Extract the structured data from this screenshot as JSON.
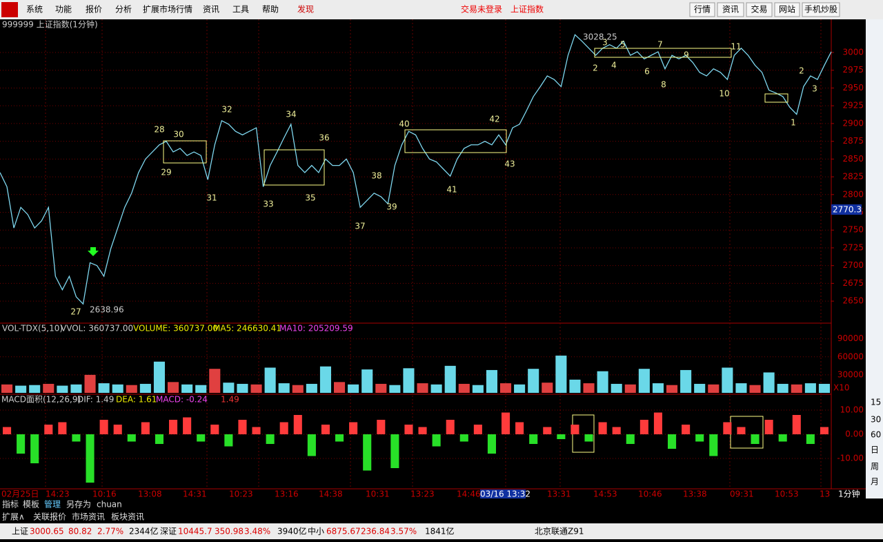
{
  "menu": [
    "系统",
    "功能",
    "报价",
    "分析",
    "扩展市场行情",
    "资讯",
    "工具",
    "帮助",
    "发现"
  ],
  "status": [
    "交易未登录",
    "上证指数"
  ],
  "top_buttons": [
    "行情",
    "资讯",
    "交易",
    "网站",
    "手机炒股"
  ],
  "main_chart": {
    "title": "999999 上证指数(1分钟)",
    "ylim": [
      2620,
      3035
    ],
    "yticks": [
      2650,
      2675,
      2700,
      2725,
      2750,
      2775,
      2800,
      2825,
      2850,
      2875,
      2900,
      2925,
      2950,
      2975,
      3000
    ],
    "price": [
      2831,
      2811,
      2753,
      2782,
      2772,
      2753,
      2763,
      2782,
      2685,
      2666,
      2685,
      2656,
      2646,
      2704,
      2700,
      2685,
      2724,
      2753,
      2782,
      2802,
      2831,
      2850,
      2860,
      2870,
      2875,
      2860,
      2865,
      2855,
      2860,
      2855,
      2821,
      2870,
      2904,
      2899,
      2889,
      2884,
      2889,
      2894,
      2811,
      2841,
      2860,
      2880,
      2899,
      2841,
      2831,
      2841,
      2831,
      2850,
      2841,
      2841,
      2850,
      2831,
      2782,
      2792,
      2802,
      2797,
      2787,
      2841,
      2870,
      2889,
      2884,
      2865,
      2850,
      2846,
      2836,
      2826,
      2850,
      2865,
      2870,
      2870,
      2875,
      2870,
      2884,
      2870,
      2894,
      2899,
      2918,
      2938,
      2952,
      2967,
      2962,
      2952,
      2996,
      3025,
      3016,
      3006,
      2996,
      3006,
      3011,
      3006,
      3016,
      2996,
      3001,
      2991,
      2996,
      3001,
      2977,
      2996,
      2991,
      2996,
      2986,
      2972,
      2967,
      2977,
      2972,
      2962,
      2996,
      3006,
      2996,
      2982,
      2972,
      2947,
      2943,
      2938,
      2923,
      2913,
      2952,
      2967,
      2962,
      2982,
      3001
    ],
    "high_label": "3028.25",
    "low_label": "2638.96",
    "current_label": "2770.3",
    "wave_labels": [
      "27",
      "28",
      "29",
      "30",
      "31",
      "32",
      "33",
      "34",
      "35",
      "36",
      "37",
      "38",
      "39",
      "40",
      "41",
      "42",
      "43",
      "2",
      "3",
      "4",
      "5",
      "6",
      "7",
      "8",
      "9",
      "10",
      "11",
      "1",
      "2",
      "3"
    ]
  },
  "volume": {
    "labels": [
      "VOL-TDX(5,10)",
      "VVOL: 360737.00",
      "VOLUME: 360737.00",
      "MA5: 246630.41",
      "MA10: 205209.59"
    ],
    "ylim": [
      0,
      100000
    ],
    "yticks": [
      30000,
      60000,
      90000
    ],
    "scale_label": "X10",
    "values": [
      14000,
      12000,
      13000,
      15000,
      12000,
      14000,
      30000,
      16000,
      14000,
      13000,
      15000,
      52000,
      18000,
      14000,
      13000,
      40000,
      17000,
      15000,
      14000,
      42000,
      16000,
      13000,
      15000,
      44000,
      18000,
      14000,
      39000,
      15000,
      13000,
      41000,
      16000,
      14000,
      45000,
      15000,
      13000,
      38000,
      16000,
      14000,
      40000,
      17000,
      62000,
      22000,
      16000,
      36000,
      15000,
      14000,
      40000,
      16000,
      13000,
      38000,
      15000,
      14000,
      42000,
      16000,
      13000,
      34000,
      15000,
      14000,
      16000,
      15000
    ]
  },
  "macd": {
    "labels": [
      "MACD面积(12,26,9)",
      "DIF: 1.49",
      "DEA: 1.61",
      "MACD: -0.24",
      "1.49"
    ],
    "ylim": [
      -22,
      16
    ],
    "yticks": [
      {
        "value": 10,
        "label": "10.00"
      },
      {
        "value": 0,
        "label": "0.00"
      },
      {
        "value": -10,
        "label": "-10.00"
      }
    ],
    "values": [
      3,
      -8,
      -12,
      4,
      5,
      -3,
      -20,
      6,
      4,
      -3,
      5,
      -4,
      6,
      7,
      -3,
      4,
      -5,
      6,
      3,
      -4,
      5,
      8,
      -9,
      4,
      -3,
      5,
      -15,
      6,
      -14,
      4,
      3,
      -5,
      6,
      -3,
      4,
      -8,
      9,
      5,
      -4,
      3,
      -2,
      4,
      -3,
      5,
      3,
      -4,
      6,
      9,
      -6,
      4,
      -3,
      -9,
      5,
      3,
      -4,
      6,
      -3,
      8,
      -4,
      3
    ]
  },
  "x_labels": [
    "02月25日",
    "14:23",
    "10:16",
    "13:08",
    "14:31",
    "10:23",
    "13:16",
    "14:38",
    "10:31",
    "13:23",
    "14:46",
    "03/16 13:32",
    "13:31",
    "14:53",
    "10:46",
    "13:38",
    "09:31",
    "10:53",
    "13"
  ],
  "period_labels": [
    "15",
    "30",
    "60",
    "日",
    "周",
    "月",
    "1分钟"
  ],
  "bottom_tabs": [
    "指标",
    "模板",
    "管理",
    "另存为",
    "chuan"
  ],
  "lower_tabs": [
    "扩展∧",
    "关联报价",
    "市场资讯",
    "板块资讯"
  ],
  "status_bar": [
    "上证",
    "3000.65",
    "80.82",
    "2.77%",
    "2344亿",
    "深证",
    "10445.7",
    "350.98",
    "3.48%",
    "3940亿",
    "中小",
    "6875.67",
    "236.84",
    "3.57%",
    "1841亿",
    "北京联通Z91"
  ]
}
